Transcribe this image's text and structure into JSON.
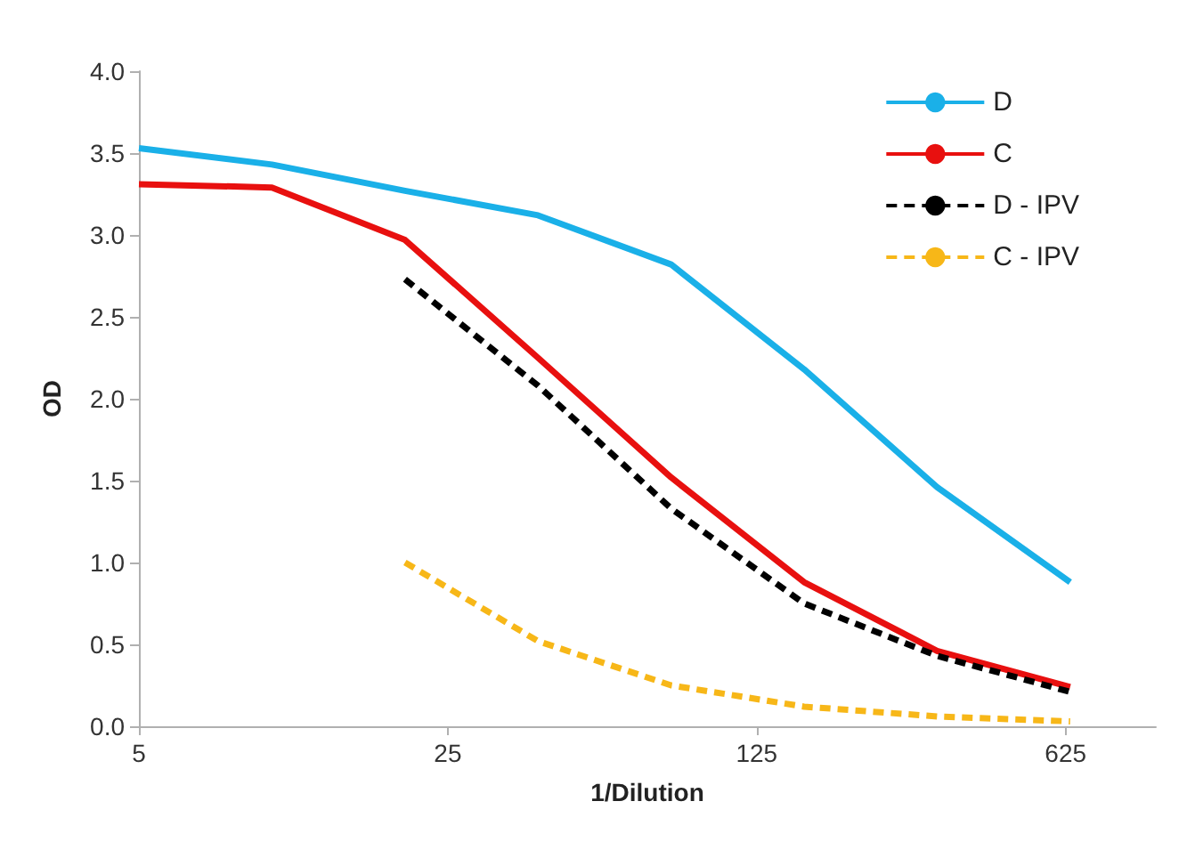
{
  "chart_data": {
    "type": "line",
    "xlabel": "1/Dilution",
    "ylabel": "OD",
    "log": "x",
    "x": [
      5,
      10,
      20,
      40,
      80,
      160,
      320,
      640
    ],
    "xlim": [
      5,
      1000
    ],
    "xticks": [
      5,
      25,
      125,
      625
    ],
    "ylim": [
      0,
      4
    ],
    "yticks": [
      {
        "value": 0,
        "label": "0.0"
      },
      {
        "value": 0.5,
        "label": "0.5"
      },
      {
        "value": 1,
        "label": "1.0"
      },
      {
        "value": 1.5,
        "label": "1.5"
      },
      {
        "value": 2,
        "label": "2.0"
      },
      {
        "value": 2.5,
        "label": "2.5"
      },
      {
        "value": 3,
        "label": "3.0"
      },
      {
        "value": 3.5,
        "label": "3.5"
      },
      {
        "value": 4,
        "label": "4.0"
      }
    ],
    "grid": false,
    "legend": "top right",
    "marker": "none",
    "series": [
      {
        "name": "D",
        "color": "#1ab0e8",
        "line_style": "solid",
        "values": [
          3.53,
          3.43,
          3.27,
          3.12,
          2.82,
          2.18,
          1.46,
          0.88
        ]
      },
      {
        "name": "C",
        "color": "#e8100f",
        "line_style": "solid",
        "values": [
          3.31,
          3.29,
          2.97,
          2.25,
          1.52,
          0.88,
          0.46,
          0.24
        ]
      },
      {
        "name": "D - IPV",
        "color": "#000000",
        "line_style": "dashed",
        "values": [
          null,
          null,
          2.73,
          2.08,
          1.33,
          0.75,
          0.43,
          0.21
        ]
      },
      {
        "name": "C - IPV",
        "color": "#f7b718",
        "line_style": "dashed",
        "values": [
          null,
          null,
          1.0,
          0.52,
          0.25,
          0.12,
          0.06,
          0.03
        ]
      }
    ]
  }
}
